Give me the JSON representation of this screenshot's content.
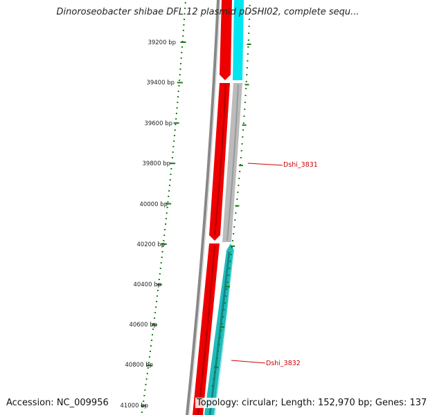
{
  "title": "Dinoroseobacter shibae DFL 12 plasmid pDSHI02, complete sequ...",
  "footer": {
    "accession": "Accession: NC_009956",
    "summary": "Topology: circular; Length: 152,970 bp; Genes: 137"
  },
  "ruler": {
    "labels": [
      "39200 bp",
      "39400 bp",
      "39600 bp",
      "39800 bp",
      "40000 bp",
      "40200 bp",
      "40400 bp",
      "40600 bp",
      "40800 bp",
      "41000 bp"
    ]
  },
  "genes": [
    {
      "label": "Dshi_3831"
    },
    {
      "label": "Dshi_3832"
    }
  ],
  "colors": {
    "ruler": "#1a7a1a",
    "backbone": "#888888",
    "forward_gene": "#ee0000",
    "reverse_gene_gray": "#bbbbbb",
    "reverse_gene_cyan": "#22bbbb",
    "label": "#cc0000"
  }
}
